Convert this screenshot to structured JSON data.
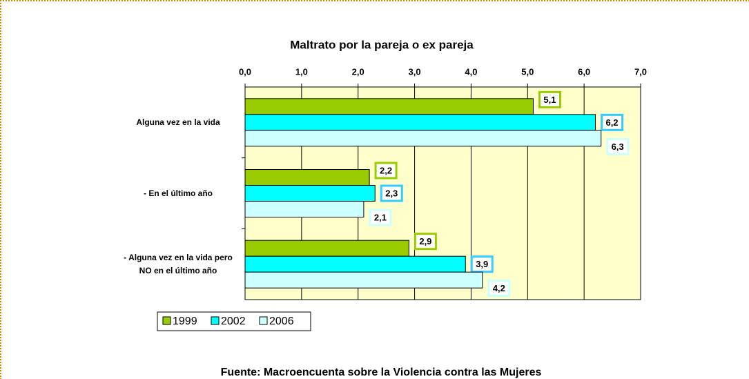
{
  "chart_data": {
    "type": "barh",
    "title": "Maltrato por la pareja o ex pareja",
    "source": "Fuente: Macroencuenta sobre la Violencia contra las Mujeres",
    "categories": [
      "Alguna vez en la vida",
      "- En el último año",
      "- Alguna vez en la vida pero NO en el último año"
    ],
    "series": [
      {
        "name": "1999",
        "color": "#99cc00",
        "label_border": "#99cc00",
        "values": [
          5.1,
          2.2,
          2.9
        ],
        "value_labels": [
          "5,1",
          "2,2",
          "2,9"
        ]
      },
      {
        "name": "2002",
        "color": "#00ffff",
        "label_border": "#33ccff",
        "values": [
          6.2,
          2.3,
          3.9
        ],
        "value_labels": [
          "6,2",
          "2,3",
          "3,9"
        ]
      },
      {
        "name": "2006",
        "color": "#ccffff",
        "label_border": "#ccffff",
        "values": [
          6.3,
          2.1,
          4.2
        ],
        "value_labels": [
          "6,3",
          "2,1",
          "4,2"
        ]
      }
    ],
    "xlim": [
      0,
      7
    ],
    "xticks": [
      {
        "value": 0,
        "label": "0,0"
      },
      {
        "value": 1,
        "label": "1,0"
      },
      {
        "value": 2,
        "label": "2,0"
      },
      {
        "value": 3,
        "label": "3,0"
      },
      {
        "value": 4,
        "label": "4,0"
      },
      {
        "value": 5,
        "label": "5,0"
      },
      {
        "value": 6,
        "label": "6,0"
      },
      {
        "value": 7,
        "label": "7,0"
      }
    ],
    "grid": true,
    "plot_background": "#ffffcc"
  }
}
